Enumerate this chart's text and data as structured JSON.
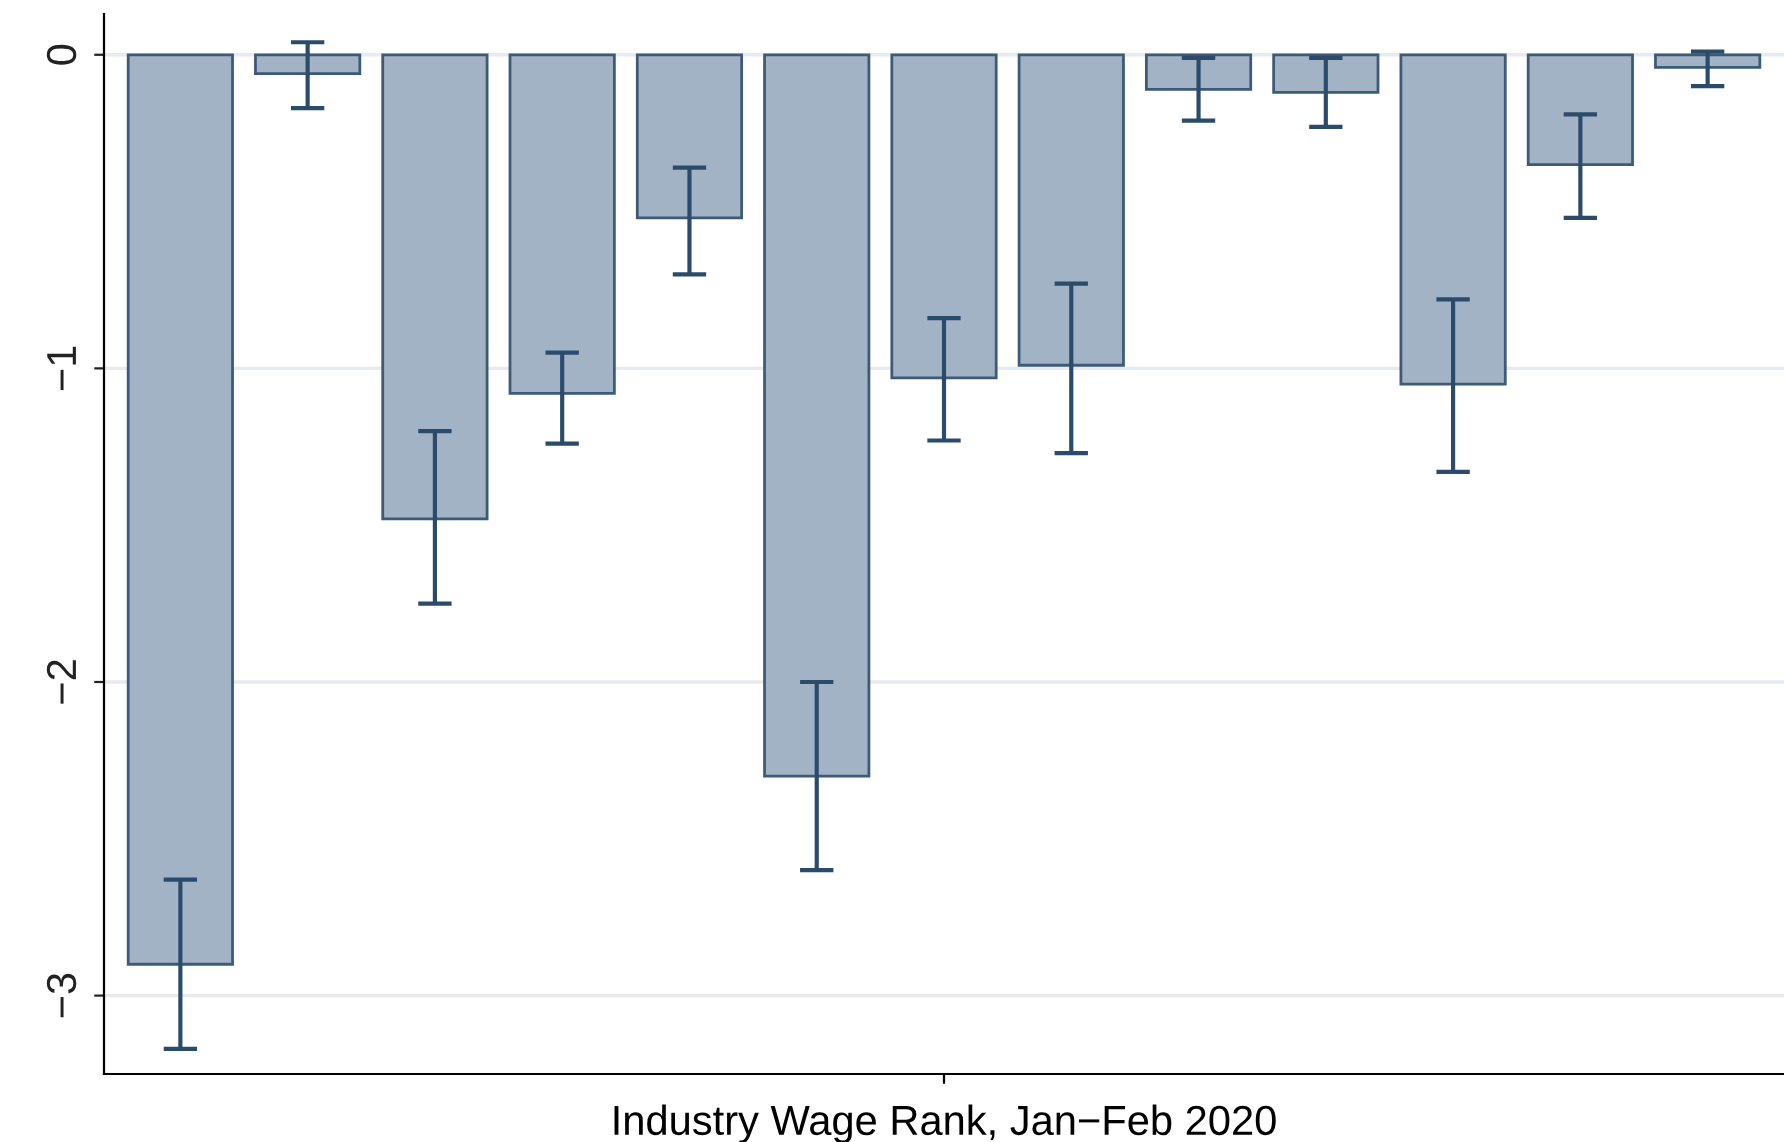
{
  "chart_data": {
    "type": "bar",
    "xlabel": "Industry Wage Rank, Jan−Feb 2020",
    "categories": [
      null,
      null,
      null,
      null,
      null,
      null,
      null,
      null,
      null,
      null,
      null,
      null,
      null
    ],
    "values": [
      -2.9,
      -0.06,
      -1.48,
      -1.08,
      -0.52,
      -2.3,
      -1.03,
      -0.99,
      -0.11,
      -0.12,
      -1.05,
      -0.35,
      -0.04
    ],
    "errors": [
      [
        -3.17,
        -2.63
      ],
      [
        -0.17,
        0.04
      ],
      [
        -1.75,
        -1.2
      ],
      [
        -1.24,
        -0.95
      ],
      [
        -0.7,
        -0.36
      ],
      [
        -2.6,
        -2.0
      ],
      [
        -1.23,
        -0.84
      ],
      [
        -1.27,
        -0.73
      ],
      [
        -0.21,
        -0.01
      ],
      [
        -0.23,
        -0.01
      ],
      [
        -1.33,
        -0.78
      ],
      [
        -0.52,
        -0.19
      ],
      [
        -0.1,
        0.01
      ]
    ],
    "color": "#a3b3c6",
    "ylim": [
      -3.25,
      0.13
    ],
    "yticks": [
      -3,
      -2,
      -1,
      0
    ],
    "grid": "y"
  }
}
